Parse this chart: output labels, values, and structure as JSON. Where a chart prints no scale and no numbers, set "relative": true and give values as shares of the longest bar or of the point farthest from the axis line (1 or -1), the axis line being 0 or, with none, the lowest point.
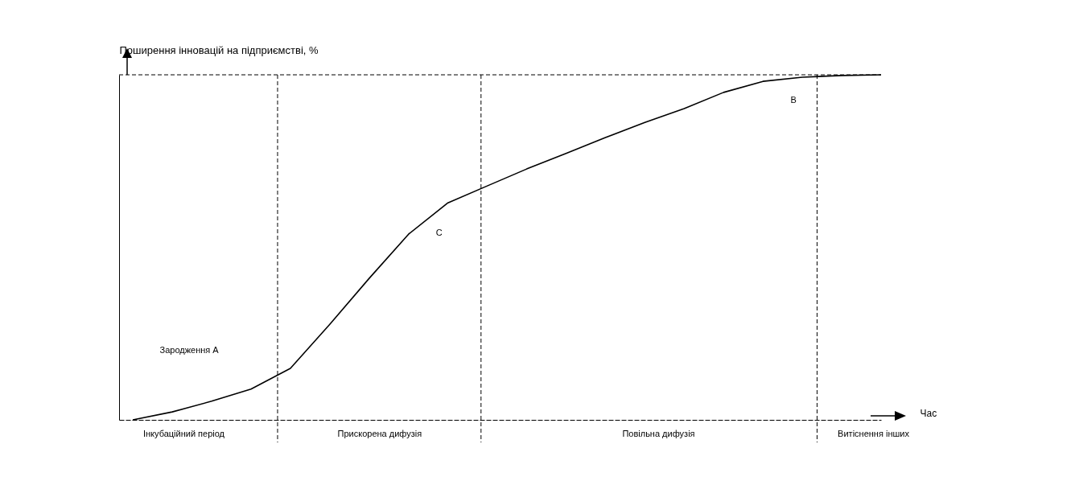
{
  "chart_data": {
    "type": "line",
    "relative": true,
    "ylabel": "Поширення інновацій на підприємстві, %",
    "xlabel": "Час",
    "categories": [
      null,
      null,
      null,
      null,
      null,
      null,
      null,
      null,
      null,
      null,
      null,
      null,
      null,
      null,
      null,
      null,
      null,
      null,
      null,
      null
    ],
    "series": [
      {
        "color": "#000000",
        "values": [
          0.0,
          0.023,
          0.054,
          0.089,
          0.149,
          0.277,
          0.41,
          0.538,
          0.629,
          0.678,
          0.727,
          0.772,
          0.818,
          0.862,
          0.902,
          0.949,
          0.981,
          0.993,
          0.998,
          1
        ]
      }
    ],
    "ref_lines": [
      {
        "axis": "y",
        "value": 1,
        "color": "#000000",
        "line_style": "dashed"
      }
    ],
    "annotations": [
      "Зародження А",
      "C",
      "B",
      "Інкубаційний період",
      "Прискорена дифузія",
      "Повільна дифузія",
      "Витіснення інших"
    ],
    "tick_labels": false,
    "grid": false,
    "line_style": "solid"
  }
}
